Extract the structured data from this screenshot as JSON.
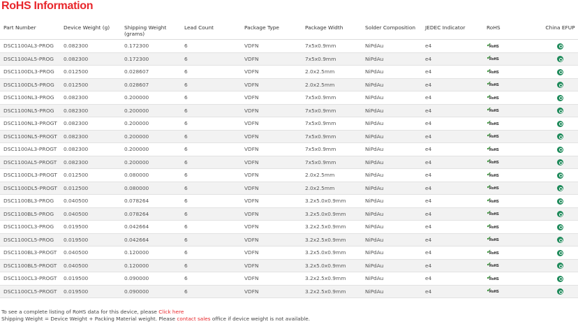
{
  "title": "RoHS Information",
  "columns": [
    "Part Number",
    "Device Weight (g)",
    "Shipping Weight (grams)",
    "Lead Count",
    "Package Type",
    "Package Width",
    "Solder Composition",
    "JEDEC Indicator",
    "RoHS",
    "China EFUP"
  ],
  "rohs_logo_text": "RoHS",
  "colors": {
    "accent": "#e8262b",
    "rohs_check": "#2b8a2b",
    "efup": "#1e8a5a",
    "row_alt": "#f2f2f2"
  },
  "icons": {
    "rohs": "rohs-compliant-icon",
    "efup": "china-efup-icon"
  },
  "rows": [
    [
      "DSC1100AL3-PROG",
      "0.082300",
      "0.172300",
      "6",
      "VDFN",
      "7x5x0.9mm",
      "NiPdAu",
      "e4"
    ],
    [
      "DSC1100AL5-PROG",
      "0.082300",
      "0.172300",
      "6",
      "VDFN",
      "7x5x0.9mm",
      "NiPdAu",
      "e4"
    ],
    [
      "DSC1100DL3-PROG",
      "0.012500",
      "0.028607",
      "6",
      "VDFN",
      "2.0x2.5mm",
      "NiPdAu",
      "e4"
    ],
    [
      "DSC1100DL5-PROG",
      "0.012500",
      "0.028607",
      "6",
      "VDFN",
      "2.0x2.5mm",
      "NiPdAu",
      "e4"
    ],
    [
      "DSC1100NL3-PROG",
      "0.082300",
      "0.200000",
      "6",
      "VDFN",
      "7x5x0.9mm",
      "NiPdAu",
      "e4"
    ],
    [
      "DSC1100NL5-PROG",
      "0.082300",
      "0.200000",
      "6",
      "VDFN",
      "7x5x0.9mm",
      "NiPdAu",
      "e4"
    ],
    [
      "DSC1100NL3-PROGT",
      "0.082300",
      "0.200000",
      "6",
      "VDFN",
      "7x5x0.9mm",
      "NiPdAu",
      "e4"
    ],
    [
      "DSC1100NL5-PROGT",
      "0.082300",
      "0.200000",
      "6",
      "VDFN",
      "7x5x0.9mm",
      "NiPdAu",
      "e4"
    ],
    [
      "DSC1100AL3-PROGT",
      "0.082300",
      "0.200000",
      "6",
      "VDFN",
      "7x5x0.9mm",
      "NiPdAu",
      "e4"
    ],
    [
      "DSC1100AL5-PROGT",
      "0.082300",
      "0.200000",
      "6",
      "VDFN",
      "7x5x0.9mm",
      "NiPdAu",
      "e4"
    ],
    [
      "DSC1100DL3-PROGT",
      "0.012500",
      "0.080000",
      "6",
      "VDFN",
      "2.0x2.5mm",
      "NiPdAu",
      "e4"
    ],
    [
      "DSC1100DL5-PROGT",
      "0.012500",
      "0.080000",
      "6",
      "VDFN",
      "2.0x2.5mm",
      "NiPdAu",
      "e4"
    ],
    [
      "DSC1100BL3-PROG",
      "0.040500",
      "0.078264",
      "6",
      "VDFN",
      "3.2x5.0x0.9mm",
      "NiPdAu",
      "e4"
    ],
    [
      "DSC1100BL5-PROG",
      "0.040500",
      "0.078264",
      "6",
      "VDFN",
      "3.2x5.0x0.9mm",
      "NiPdAu",
      "e4"
    ],
    [
      "DSC1100CL3-PROG",
      "0.019500",
      "0.042664",
      "6",
      "VDFN",
      "3.2x2.5x0.9mm",
      "NiPdAu",
      "e4"
    ],
    [
      "DSC1100CL5-PROG",
      "0.019500",
      "0.042664",
      "6",
      "VDFN",
      "3.2x2.5x0.9mm",
      "NiPdAu",
      "e4"
    ],
    [
      "DSC1100BL3-PROGT",
      "0.040500",
      "0.120000",
      "6",
      "VDFN",
      "3.2x5.0x0.9mm",
      "NiPdAu",
      "e4"
    ],
    [
      "DSC1100BL5-PROGT",
      "0.040500",
      "0.120000",
      "6",
      "VDFN",
      "3.2x5.0x0.9mm",
      "NiPdAu",
      "e4"
    ],
    [
      "DSC1100CL3-PROGT",
      "0.019500",
      "0.090000",
      "6",
      "VDFN",
      "3.2x2.5x0.9mm",
      "NiPdAu",
      "e4"
    ],
    [
      "DSC1100CL5-PROGT",
      "0.019500",
      "0.090000",
      "6",
      "VDFN",
      "3.2x2.5x0.9mm",
      "NiPdAu",
      "e4"
    ]
  ],
  "notes": {
    "line1_text": "To see a complete listing of RoHS data for this device, please ",
    "line1_link": "Click here",
    "line2_text": "Shipping Weight = Device Weight + Packing Material weight. Please ",
    "line2_link": "contact sales",
    "line2_tail": " office if device weight is not available."
  }
}
